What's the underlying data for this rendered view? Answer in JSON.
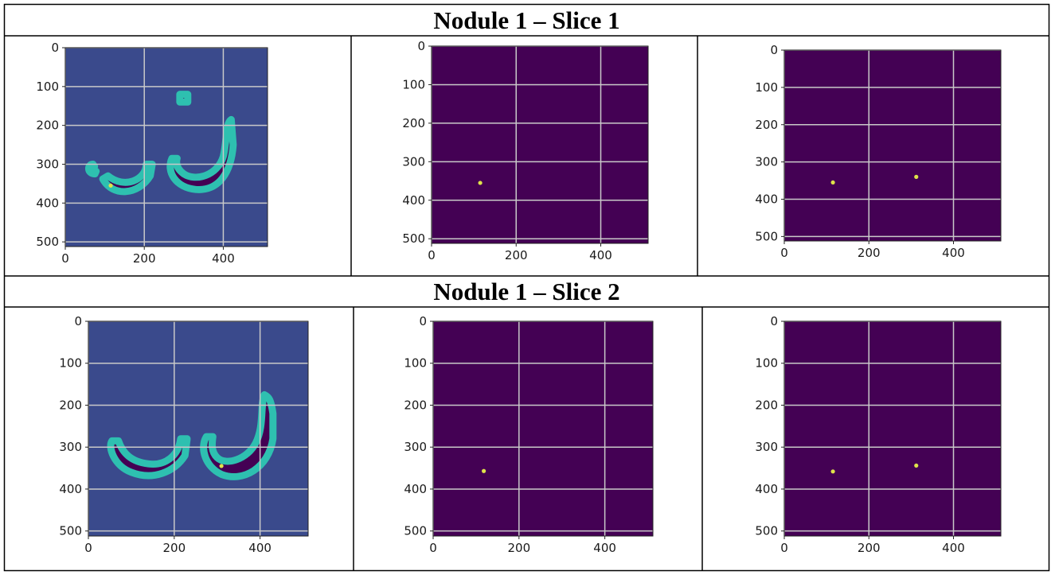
{
  "table": {
    "rows": [
      {
        "title": "Nodule 1 – Slice 1"
      },
      {
        "title": "Nodule 1 – Slice 2"
      }
    ]
  },
  "colors": {
    "bone_background": "#3a4a8c",
    "mask_background": "#440154",
    "contour": "#2ec0b0",
    "nodule_point": "#dfe34a",
    "grid": "#c9c9c9"
  },
  "chart_data": [
    {
      "type": "heatmap",
      "title": "",
      "xlim": [
        0,
        512
      ],
      "ylim": [
        512,
        0
      ],
      "xticks": [
        0,
        200,
        400
      ],
      "yticks": [
        0,
        100,
        200,
        300,
        400,
        500
      ],
      "grid": true,
      "content": "lung-segmentation",
      "points": [
        [
          115,
          355
        ]
      ]
    },
    {
      "type": "heatmap",
      "title": "",
      "xlim": [
        0,
        512
      ],
      "ylim": [
        512,
        0
      ],
      "xticks": [
        0,
        200,
        400
      ],
      "yticks": [
        0,
        100,
        200,
        300,
        400,
        500
      ],
      "grid": true,
      "content": "nodule-mask",
      "points": [
        [
          115,
          355
        ]
      ]
    },
    {
      "type": "heatmap",
      "title": "",
      "xlim": [
        0,
        512
      ],
      "ylim": [
        512,
        0
      ],
      "xticks": [
        0,
        200,
        400
      ],
      "yticks": [
        0,
        100,
        200,
        300,
        400,
        500
      ],
      "grid": true,
      "content": "nodule-mask",
      "points": [
        [
          115,
          355
        ],
        [
          312,
          340
        ]
      ]
    },
    {
      "type": "heatmap",
      "title": "",
      "xlim": [
        0,
        512
      ],
      "ylim": [
        512,
        0
      ],
      "xticks": [
        0,
        200,
        400
      ],
      "yticks": [
        0,
        100,
        200,
        300,
        400,
        500
      ],
      "grid": true,
      "content": "lung-segmentation",
      "points": [
        [
          310,
          345
        ]
      ]
    },
    {
      "type": "heatmap",
      "title": "",
      "xlim": [
        0,
        512
      ],
      "ylim": [
        512,
        0
      ],
      "xticks": [
        0,
        200,
        400
      ],
      "yticks": [
        0,
        100,
        200,
        300,
        400,
        500
      ],
      "grid": true,
      "content": "nodule-mask",
      "points": [
        [
          118,
          357
        ]
      ]
    },
    {
      "type": "heatmap",
      "title": "",
      "xlim": [
        0,
        512
      ],
      "ylim": [
        512,
        0
      ],
      "xticks": [
        0,
        200,
        400
      ],
      "yticks": [
        0,
        100,
        200,
        300,
        400,
        500
      ],
      "grid": true,
      "content": "nodule-mask",
      "points": [
        [
          115,
          358
        ],
        [
          312,
          344
        ]
      ]
    }
  ]
}
